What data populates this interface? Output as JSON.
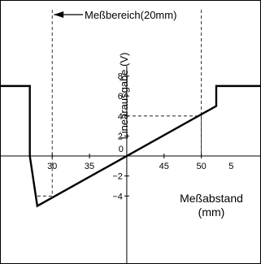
{
  "chart_data": {
    "type": "line",
    "xlabel": "Meßabstand",
    "xlabel_unit": "(mm)",
    "ylabel": "Linearausgabe (V)",
    "range_label": "Meßbereich(20mm)",
    "x_ticks": [
      30,
      35,
      45,
      50
    ],
    "x_zero_label": "0",
    "x_zero_value": 40,
    "y_ticks": [
      8,
      6,
      4,
      2
    ],
    "y_ticks_neg": [
      {
        "value": -2,
        "label": "−2"
      },
      {
        "value": -4,
        "label": "−4"
      }
    ],
    "x_end_label": "5",
    "x_end_value": 54,
    "xlim": [
      23,
      58
    ],
    "ylim": [
      -10.8,
      15.6
    ],
    "measurement_range": [
      30,
      50
    ],
    "series": [
      {
        "x": [
          23,
          27,
          27,
          28,
          40,
          52,
          52,
          58
        ],
        "y": [
          7,
          7,
          0,
          -5,
          0,
          5,
          7,
          7
        ]
      }
    ],
    "guides": [
      {
        "x": [
          28,
          30,
          30
        ],
        "y": [
          -4,
          -4,
          0
        ]
      },
      {
        "x": [
          40,
          50,
          50
        ],
        "y": [
          4,
          4,
          0
        ]
      }
    ]
  }
}
